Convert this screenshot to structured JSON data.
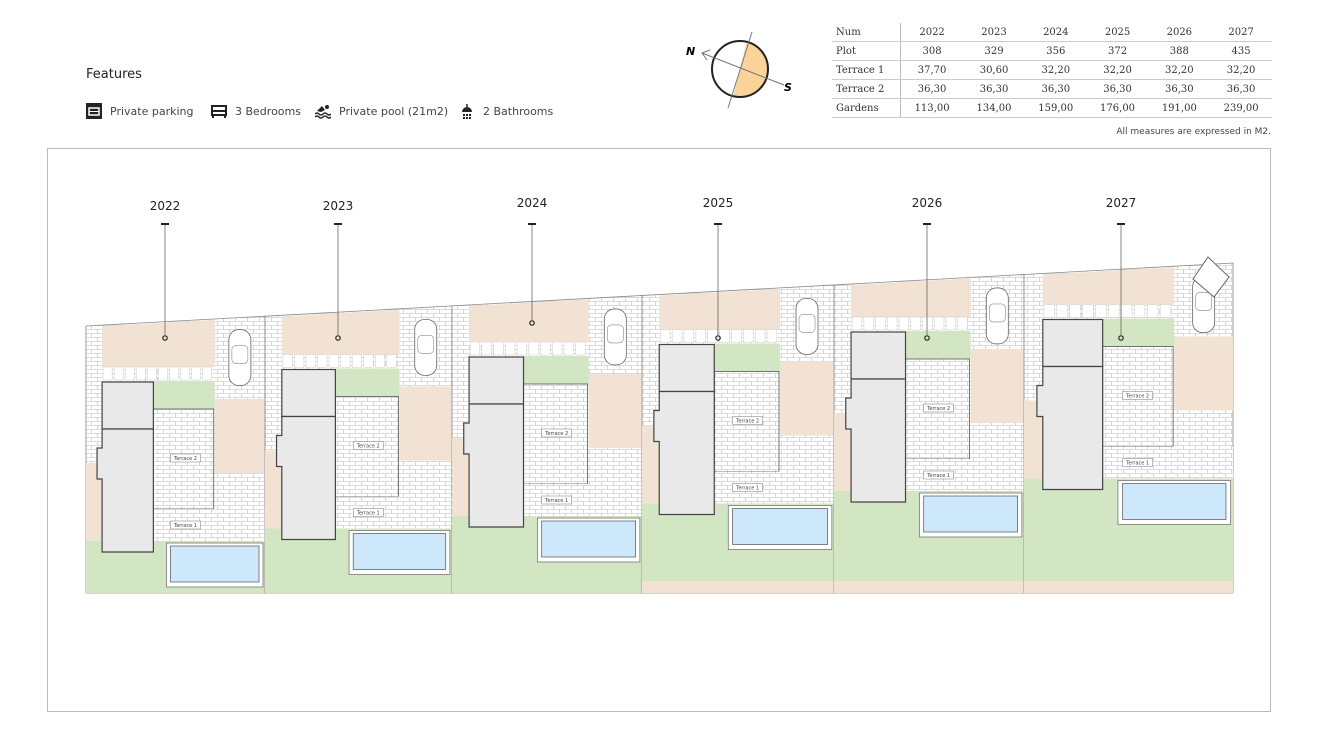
{
  "features": {
    "title": "Features",
    "items": [
      {
        "icon": "garage-icon",
        "label": "Private parking"
      },
      {
        "icon": "bed-icon",
        "label": "3 Bedrooms"
      },
      {
        "icon": "swimmer-icon",
        "label": "Private pool (21m2)"
      },
      {
        "icon": "shower-icon",
        "label": "2 Bathrooms"
      }
    ]
  },
  "compass": {
    "north": "N",
    "south": "S",
    "accent": "#f9d39a"
  },
  "table": {
    "header": [
      "Num",
      "2022",
      "2023",
      "2024",
      "2025",
      "2026",
      "2027"
    ],
    "rows": [
      [
        "Plot",
        "308",
        "329",
        "356",
        "372",
        "388",
        "435"
      ],
      [
        "Terrace 1",
        "37,70",
        "30,60",
        "32,20",
        "32,20",
        "32,20",
        "32,20"
      ],
      [
        "Terrace 2",
        "36,30",
        "36,30",
        "36,30",
        "36,30",
        "36,30",
        "36,30"
      ],
      [
        "Gardens",
        "113,00",
        "134,00",
        "159,00",
        "176,00",
        "191,00",
        "239,00"
      ]
    ],
    "note": "All measures are expressed in M2."
  },
  "plan": {
    "plots": [
      "2022",
      "2023",
      "2024",
      "2025",
      "2026",
      "2027"
    ],
    "terrace1_label": "Terrace 1",
    "terrace2_label": "Terrace 2",
    "colors": {
      "beige": "#f2e2d4",
      "green": "#d3e6c4",
      "pool": "#cde8fa",
      "house": "#e9e9e9"
    }
  }
}
